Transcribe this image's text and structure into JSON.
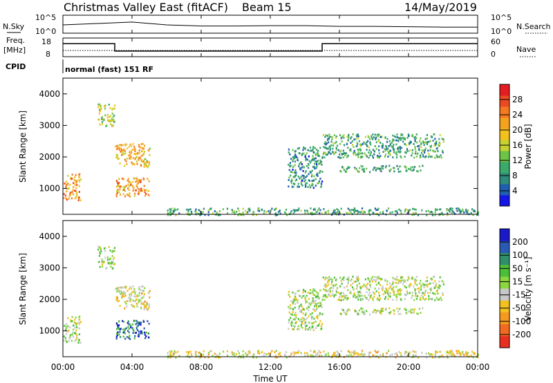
{
  "header": {
    "title": "Christmas Valley East (fitACF)",
    "beam": "Beam 15",
    "date": "14/May/2019"
  },
  "panels": {
    "nsky": {
      "label": "N.Sky",
      "left_ticks": [
        "10^5",
        "10^0"
      ],
      "right_label": "N.Search",
      "right_ticks": [
        "10^5",
        "10^0"
      ]
    },
    "freq": {
      "label_top": "Freq.",
      "label_bottom": "[MHz]",
      "left_ticks": [
        "18",
        "8"
      ],
      "right_label": "Nave",
      "right_ticks": [
        "60",
        "0"
      ]
    },
    "cpid": {
      "label": "CPID",
      "text": "normal (fast) 151 RF"
    }
  },
  "axes": {
    "xlabel": "Time UT",
    "x_ticks": [
      "00:00",
      "04:00",
      "08:00",
      "12:00",
      "16:00",
      "20:00",
      "00:00"
    ],
    "ylabel": "Slant Range [km]",
    "y_ticks": [
      "1000",
      "2000",
      "3000",
      "4000"
    ]
  },
  "colorbars": {
    "power": {
      "label": "Power [dB]",
      "ticks": [
        "4",
        "8",
        "12",
        "16",
        "20",
        "24",
        "28"
      ],
      "colors": [
        "#1515e8",
        "#1f5fb0",
        "#2e8a7a",
        "#3aa96a",
        "#6cc447",
        "#c5d230",
        "#f2c11e",
        "#f5a21e",
        "#f57a1f",
        "#ee4a22",
        "#e31d22"
      ]
    },
    "velocity": {
      "label": "Velocity [m s⁻¹]",
      "ticks": [
        "200",
        "100",
        "50",
        "15",
        "-15",
        "-50",
        "-100",
        "-200"
      ],
      "colors": [
        "#1a1ac8",
        "#2a5ab4",
        "#2f8f6a",
        "#4cbf3a",
        "#8cd640",
        "#c8c8c8",
        "#f2c11e",
        "#f59a1e",
        "#f26a1f",
        "#e83020"
      ]
    }
  },
  "chart_data": [
    {
      "type": "line",
      "title": "N.Sky / N.Search",
      "x": [
        "00:00",
        "02:00",
        "04:00",
        "06:00",
        "08:00",
        "10:00",
        "12:00",
        "14:00",
        "16:00",
        "18:00",
        "20:00",
        "22:00",
        "24:00"
      ],
      "series": [
        {
          "name": "N.Sky",
          "values": [
            2.3,
            2.7,
            3.1,
            2.3,
            2.0,
            2.0,
            2.1,
            2.1,
            1.9,
            1.9,
            1.8,
            1.7,
            1.7
          ]
        }
      ],
      "ylim": [
        0,
        5
      ],
      "yscale": "log10"
    },
    {
      "type": "line",
      "title": "Freq. [MHz] / Nave",
      "x": [
        "00:00",
        "03:00",
        "03:00",
        "15:00",
        "15:00",
        "24:00"
      ],
      "series": [
        {
          "name": "Freq.",
          "values": [
            15,
            15,
            11,
            11,
            15,
            15
          ]
        },
        {
          "name": "Nave",
          "values": [
            20,
            20,
            20,
            20,
            20,
            20
          ]
        }
      ],
      "ylim": [
        8,
        18
      ]
    },
    {
      "type": "heatmap",
      "title": "Power [dB]",
      "xlabel": "Time UT",
      "ylabel": "Slant Range [km]",
      "xlim": [
        "00:00",
        "24:00"
      ],
      "ylim": [
        180,
        4500
      ],
      "zlim": [
        0,
        32
      ],
      "regions": [
        {
          "time": [
            "00:00",
            "01:00"
          ],
          "range_km": [
            650,
            1500
          ],
          "value": 22
        },
        {
          "time": [
            "02:00",
            "03:00"
          ],
          "range_km": [
            3000,
            3700
          ],
          "value": 14
        },
        {
          "time": [
            "03:00",
            "05:00"
          ],
          "range_km": [
            1700,
            2450
          ],
          "value": 20
        },
        {
          "time": [
            "03:00",
            "05:00"
          ],
          "range_km": [
            750,
            1350
          ],
          "value": 22
        },
        {
          "time": [
            "13:00",
            "15:00"
          ],
          "range_km": [
            1050,
            2350
          ],
          "value": 8
        },
        {
          "time": [
            "15:00",
            "22:00"
          ],
          "range_km": [
            2000,
            2750
          ],
          "value": 10
        },
        {
          "time": [
            "16:00",
            "21:00"
          ],
          "range_km": [
            1550,
            1750
          ],
          "value": 10
        },
        {
          "time": [
            "06:00",
            "24:00"
          ],
          "range_km": [
            180,
            400
          ],
          "value": 10
        }
      ]
    },
    {
      "type": "heatmap",
      "title": "Velocity [m s⁻¹]",
      "xlabel": "Time UT",
      "ylabel": "Slant Range [km]",
      "xlim": [
        "00:00",
        "24:00"
      ],
      "ylim": [
        180,
        4500
      ],
      "zlim": [
        -250,
        250
      ],
      "regions": [
        {
          "time": [
            "00:00",
            "01:00"
          ],
          "range_km": [
            650,
            1500
          ],
          "value": 0
        },
        {
          "time": [
            "02:00",
            "03:00"
          ],
          "range_km": [
            3000,
            3700
          ],
          "value": 0
        },
        {
          "time": [
            "03:00",
            "05:00"
          ],
          "range_km": [
            1700,
            2450
          ],
          "value": -40
        },
        {
          "time": [
            "03:00",
            "05:00"
          ],
          "range_km": [
            750,
            1350
          ],
          "value": 150
        },
        {
          "time": [
            "13:00",
            "15:00"
          ],
          "range_km": [
            1050,
            2350
          ],
          "value": 0
        },
        {
          "time": [
            "15:00",
            "22:00"
          ],
          "range_km": [
            2000,
            2750
          ],
          "value": 0
        },
        {
          "time": [
            "16:00",
            "21:00"
          ],
          "range_km": [
            1550,
            1750
          ],
          "value": 0
        },
        {
          "time": [
            "06:00",
            "24:00"
          ],
          "range_km": [
            180,
            400
          ],
          "value": -40
        }
      ]
    }
  ]
}
